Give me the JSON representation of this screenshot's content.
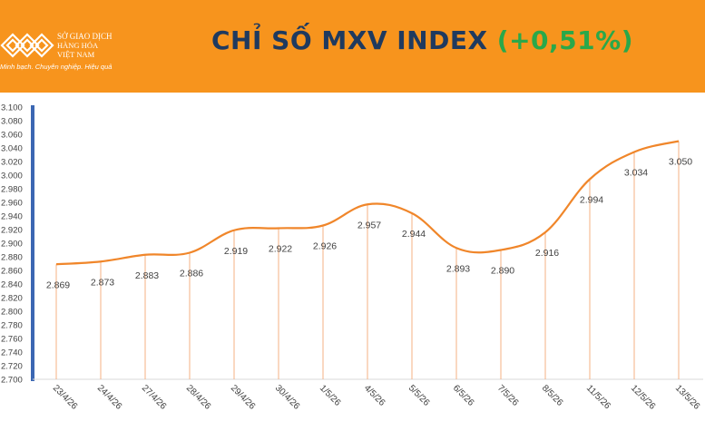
{
  "header": {
    "logo": {
      "line1": "SỞ GIAO DỊCH",
      "line2": "HÀNG HÓA",
      "line3": "VIỆT NAM",
      "slogan": "Minh bạch. Chuyên nghiệp. Hiệu quả",
      "icon": "mxv-logo-icon"
    },
    "title": "CHỈ SỐ MXV INDEX",
    "change": "(+0,51%)"
  },
  "colors": {
    "header_bg": "#f7941d",
    "title": "#1f3a5f",
    "change": "#2aa84a",
    "line": "#f0862a",
    "axis": "#3b67b3",
    "droplines": "#f4b183"
  },
  "chart_data": {
    "type": "line",
    "title": "",
    "xlabel": "",
    "ylabel": "",
    "categories": [
      "23/4/26",
      "24/4/26",
      "27/4/26",
      "28/4/26",
      "29/4/26",
      "30/4/26",
      "1/5/26",
      "4/5/26",
      "5/5/26",
      "6/5/26",
      "7/5/26",
      "8/5/26",
      "11/5/26",
      "12/5/26",
      "13/5/26"
    ],
    "series": [
      {
        "values": [
          2869,
          2873,
          2883,
          2886,
          2919,
          2922,
          2926,
          2957,
          2944,
          2893,
          2890,
          2916,
          2994,
          3034,
          3050
        ],
        "labels": [
          "2.869",
          "2.873",
          "2.883",
          "2.886",
          "2.919",
          "2.922",
          "2.926",
          "2.957",
          "2.944",
          "2.893",
          "2.890",
          "2.916",
          "2.994",
          "3.034",
          "3.050"
        ]
      }
    ],
    "ylim": [
      2700,
      3100
    ],
    "ytick_step": 20,
    "ytick_labels": [
      "2.700",
      "2.720",
      "2.740",
      "2.760",
      "2.780",
      "2.800",
      "2.820",
      "2.840",
      "2.860",
      "2.880",
      "2.900",
      "2.920",
      "2.940",
      "2.960",
      "2.980",
      "3.000",
      "3.020",
      "3.040",
      "3.060",
      "3.080",
      "3.100"
    ],
    "grid": false,
    "legend": "none",
    "smooth": true,
    "drop_lines": true
  }
}
